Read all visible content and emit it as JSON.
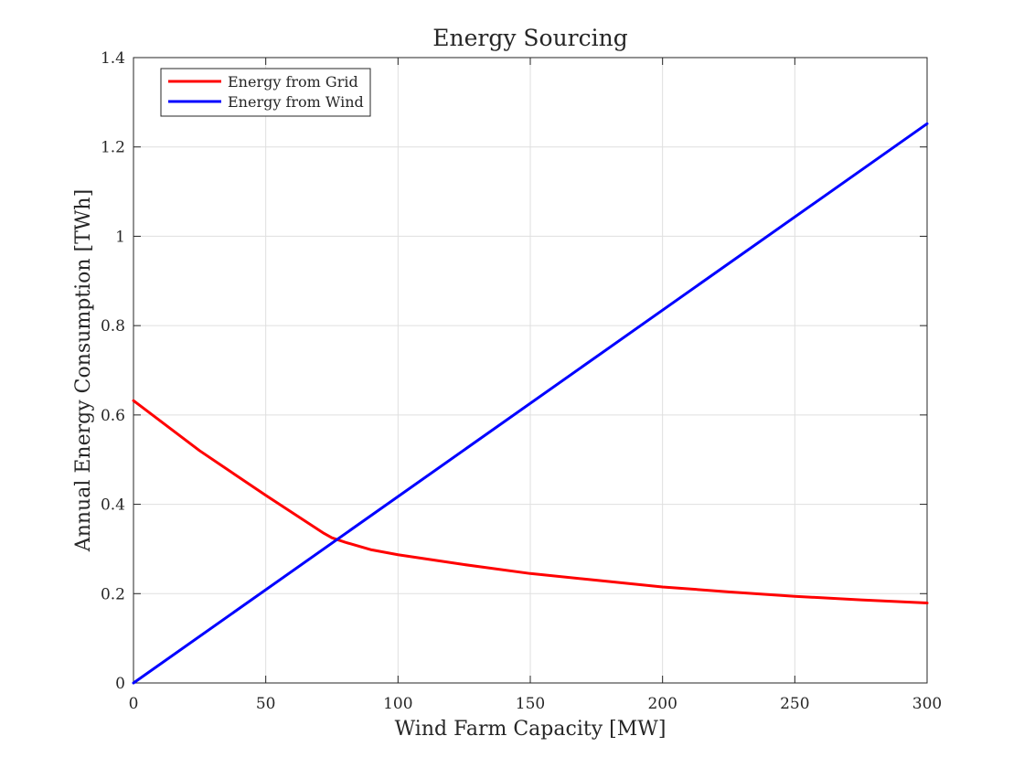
{
  "chart_data": {
    "type": "line",
    "title": "Energy Sourcing",
    "xlabel": "Wind Farm Capacity [MW]",
    "ylabel": "Annual Energy Consumption [TWh]",
    "xlim": [
      0,
      300
    ],
    "ylim": [
      0,
      1.4
    ],
    "xticks": [
      0,
      50,
      100,
      150,
      200,
      250,
      300
    ],
    "yticks": [
      0,
      0.2,
      0.4,
      0.6,
      0.8,
      1,
      1.2,
      1.4
    ],
    "xtick_labels": [
      "0",
      "50",
      "100",
      "150",
      "200",
      "250",
      "300"
    ],
    "ytick_labels": [
      "0",
      "0.2",
      "0.4",
      "0.6",
      "0.8",
      "1",
      "1.2",
      "1.4"
    ],
    "grid": true,
    "legend_position": "top-left",
    "series": [
      {
        "name": "Energy from Grid",
        "color": "#ff0000",
        "x": [
          0,
          25,
          50,
          72,
          75,
          80,
          90,
          100,
          125,
          150,
          175,
          200,
          225,
          250,
          275,
          300
        ],
        "y": [
          0.632,
          0.52,
          0.42,
          0.335,
          0.325,
          0.315,
          0.298,
          0.287,
          0.265,
          0.245,
          0.23,
          0.215,
          0.204,
          0.194,
          0.186,
          0.179
        ]
      },
      {
        "name": "Energy from Wind",
        "color": "#0000ff",
        "x": [
          0,
          300
        ],
        "y": [
          0,
          1.252
        ]
      }
    ]
  }
}
